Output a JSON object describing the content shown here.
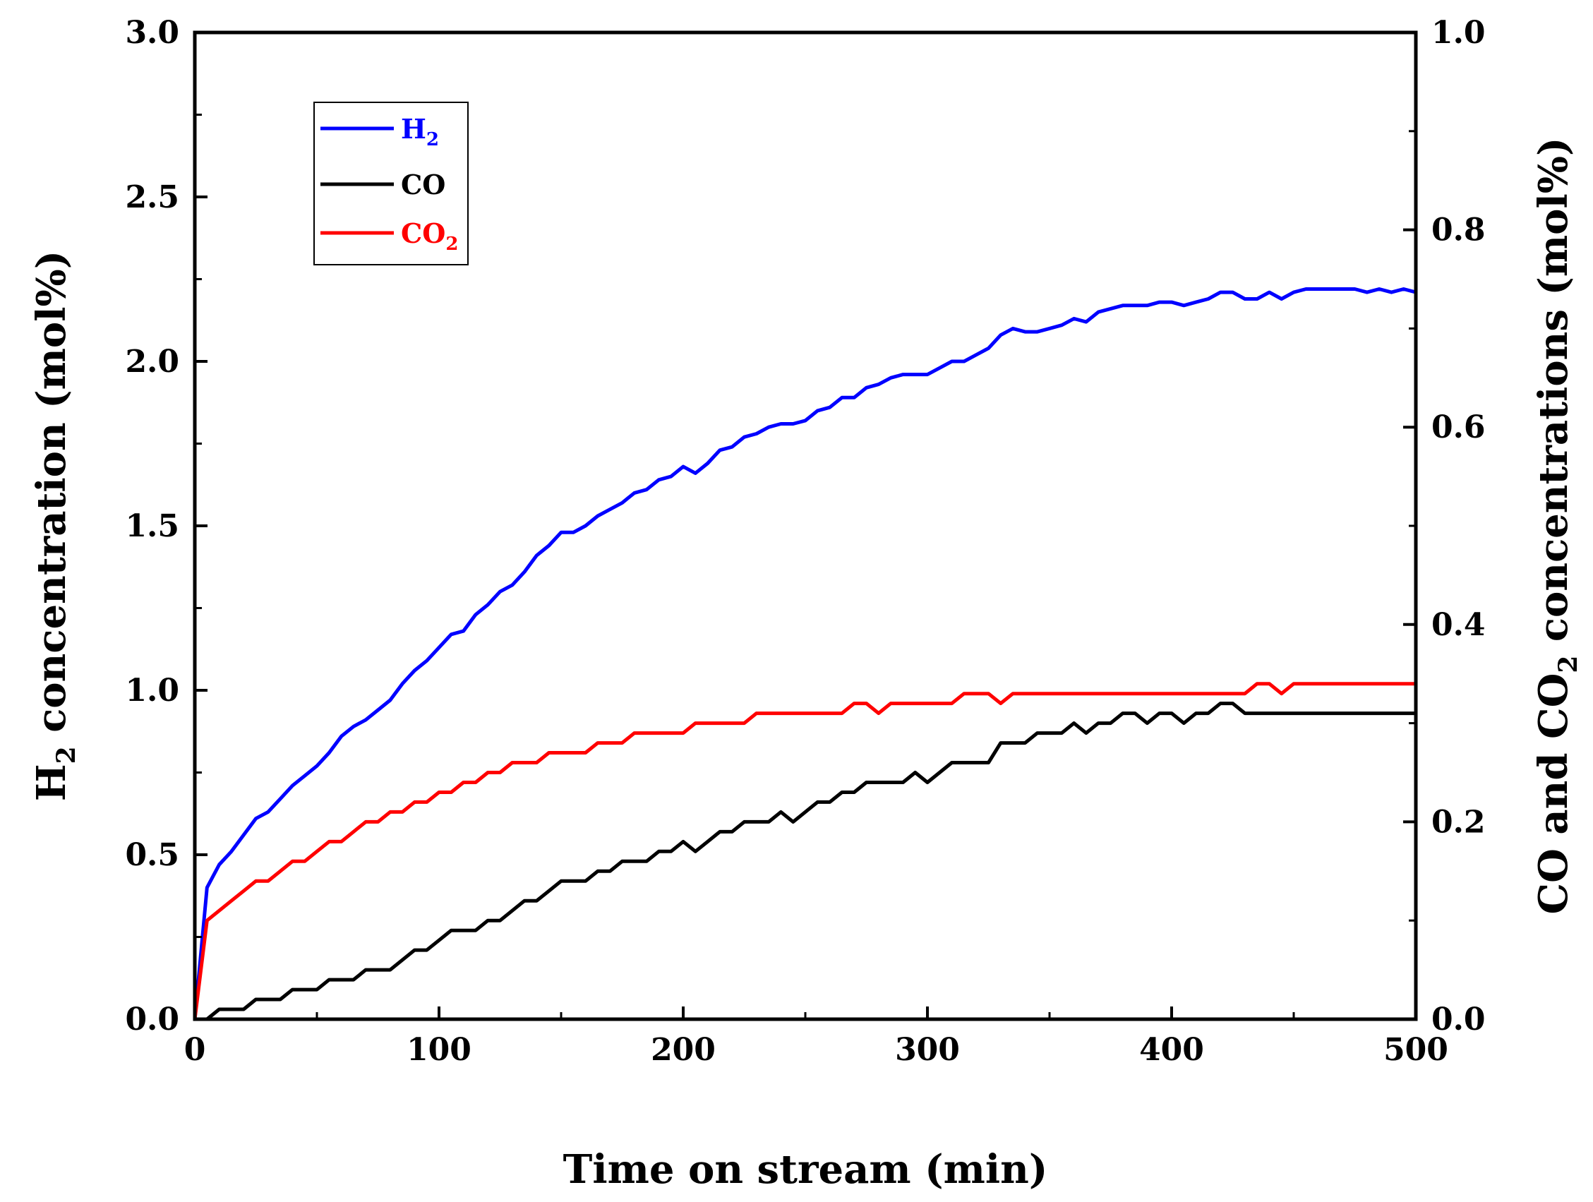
{
  "chart_data": {
    "type": "line",
    "xlabel": "Time on stream (min)",
    "ylabel": {
      "main": "H",
      "sub": "2",
      "rest": " concentration (mol%)"
    },
    "y2label": {
      "pre": "CO and CO",
      "sub": "2",
      "post": " concentrations (mol%)"
    },
    "xlim": [
      0,
      500
    ],
    "ylim": [
      0,
      3.0
    ],
    "y2lim": [
      0,
      1.0
    ],
    "x_ticks": [
      "0",
      "100",
      "200",
      "300",
      "400",
      "500"
    ],
    "y_ticks": [
      "0.0",
      "0.5",
      "1.0",
      "1.5",
      "2.0",
      "2.5",
      "3.0"
    ],
    "y2_ticks": [
      "0.0",
      "0.2",
      "0.4",
      "0.6",
      "0.8",
      "1.0"
    ],
    "legend_position": "top-left",
    "series": [
      {
        "name": "H2",
        "label_main": "H",
        "label_sub": "2",
        "axis": "left",
        "color": "#0000ff",
        "x": [
          0,
          5,
          10,
          15,
          20,
          25,
          30,
          35,
          40,
          45,
          50,
          55,
          60,
          65,
          70,
          75,
          80,
          85,
          90,
          95,
          100,
          105,
          110,
          115,
          120,
          125,
          130,
          135,
          140,
          145,
          150,
          155,
          160,
          165,
          170,
          175,
          180,
          185,
          190,
          195,
          200,
          205,
          210,
          215,
          220,
          225,
          230,
          235,
          240,
          245,
          250,
          255,
          260,
          265,
          270,
          275,
          280,
          285,
          290,
          295,
          300,
          305,
          310,
          315,
          320,
          325,
          330,
          335,
          340,
          345,
          350,
          355,
          360,
          365,
          370,
          375,
          380,
          385,
          390,
          395,
          400,
          405,
          410,
          415,
          420,
          425,
          430,
          435,
          440,
          445,
          450,
          455,
          460,
          465,
          470,
          475,
          480,
          485,
          490,
          495,
          500
        ],
        "values": [
          0.0,
          0.4,
          0.47,
          0.51,
          0.56,
          0.61,
          0.63,
          0.67,
          0.71,
          0.74,
          0.77,
          0.81,
          0.86,
          0.89,
          0.91,
          0.94,
          0.97,
          1.02,
          1.06,
          1.09,
          1.13,
          1.17,
          1.18,
          1.23,
          1.26,
          1.3,
          1.32,
          1.36,
          1.41,
          1.44,
          1.48,
          1.48,
          1.5,
          1.53,
          1.55,
          1.57,
          1.6,
          1.61,
          1.64,
          1.65,
          1.68,
          1.66,
          1.69,
          1.73,
          1.74,
          1.77,
          1.78,
          1.8,
          1.81,
          1.81,
          1.82,
          1.85,
          1.86,
          1.89,
          1.89,
          1.92,
          1.93,
          1.95,
          1.96,
          1.96,
          1.96,
          1.98,
          2.0,
          2.0,
          2.02,
          2.04,
          2.08,
          2.1,
          2.09,
          2.09,
          2.1,
          2.11,
          2.13,
          2.12,
          2.15,
          2.16,
          2.17,
          2.17,
          2.17,
          2.18,
          2.18,
          2.17,
          2.18,
          2.19,
          2.21,
          2.21,
          2.19,
          2.19,
          2.21,
          2.19,
          2.21,
          2.22,
          2.22,
          2.22,
          2.22,
          2.22,
          2.21,
          2.22,
          2.21,
          2.22,
          2.21
        ]
      },
      {
        "name": "CO",
        "label_main": "CO",
        "label_sub": "",
        "axis": "right",
        "color": "#000000",
        "x": [
          0,
          5,
          10,
          15,
          20,
          25,
          30,
          35,
          40,
          45,
          50,
          55,
          60,
          65,
          70,
          75,
          80,
          85,
          90,
          95,
          100,
          105,
          110,
          115,
          120,
          125,
          130,
          135,
          140,
          145,
          150,
          155,
          160,
          165,
          170,
          175,
          180,
          185,
          190,
          195,
          200,
          205,
          210,
          215,
          220,
          225,
          230,
          235,
          240,
          245,
          250,
          255,
          260,
          265,
          270,
          275,
          280,
          285,
          290,
          295,
          300,
          305,
          310,
          315,
          320,
          325,
          330,
          335,
          340,
          345,
          350,
          355,
          360,
          365,
          370,
          375,
          380,
          385,
          390,
          395,
          400,
          405,
          410,
          415,
          420,
          425,
          430,
          435,
          440,
          445,
          450,
          455,
          460,
          465,
          470,
          475,
          480,
          485,
          490,
          495,
          500
        ],
        "values": [
          0.0,
          0.0,
          0.01,
          0.01,
          0.01,
          0.02,
          0.02,
          0.02,
          0.03,
          0.03,
          0.03,
          0.04,
          0.04,
          0.04,
          0.05,
          0.05,
          0.05,
          0.06,
          0.07,
          0.07,
          0.08,
          0.09,
          0.09,
          0.09,
          0.1,
          0.1,
          0.11,
          0.12,
          0.12,
          0.13,
          0.14,
          0.14,
          0.14,
          0.15,
          0.15,
          0.16,
          0.16,
          0.16,
          0.17,
          0.17,
          0.18,
          0.17,
          0.18,
          0.19,
          0.19,
          0.2,
          0.2,
          0.2,
          0.21,
          0.2,
          0.21,
          0.22,
          0.22,
          0.23,
          0.23,
          0.24,
          0.24,
          0.24,
          0.24,
          0.25,
          0.24,
          0.25,
          0.26,
          0.26,
          0.26,
          0.26,
          0.28,
          0.28,
          0.28,
          0.29,
          0.29,
          0.29,
          0.3,
          0.29,
          0.3,
          0.3,
          0.31,
          0.31,
          0.3,
          0.31,
          0.31,
          0.3,
          0.31,
          0.31,
          0.32,
          0.32,
          0.31,
          0.31,
          0.31,
          0.31,
          0.31,
          0.31,
          0.31,
          0.31,
          0.31,
          0.31,
          0.31,
          0.31,
          0.31,
          0.31,
          0.31
        ]
      },
      {
        "name": "CO2",
        "label_main": "CO",
        "label_sub": "2",
        "axis": "right",
        "color": "#ff0000",
        "x": [
          0,
          5,
          10,
          15,
          20,
          25,
          30,
          35,
          40,
          45,
          50,
          55,
          60,
          65,
          70,
          75,
          80,
          85,
          90,
          95,
          100,
          105,
          110,
          115,
          120,
          125,
          130,
          135,
          140,
          145,
          150,
          155,
          160,
          165,
          170,
          175,
          180,
          185,
          190,
          195,
          200,
          205,
          210,
          215,
          220,
          225,
          230,
          235,
          240,
          245,
          250,
          255,
          260,
          265,
          270,
          275,
          280,
          285,
          290,
          295,
          300,
          305,
          310,
          315,
          320,
          325,
          330,
          335,
          340,
          345,
          350,
          355,
          360,
          365,
          370,
          375,
          380,
          385,
          390,
          395,
          400,
          405,
          410,
          415,
          420,
          425,
          430,
          435,
          440,
          445,
          450,
          455,
          460,
          465,
          470,
          475,
          480,
          485,
          490,
          495,
          500
        ],
        "values": [
          0.0,
          0.1,
          0.11,
          0.12,
          0.13,
          0.14,
          0.14,
          0.15,
          0.16,
          0.16,
          0.17,
          0.18,
          0.18,
          0.19,
          0.2,
          0.2,
          0.21,
          0.21,
          0.22,
          0.22,
          0.23,
          0.23,
          0.24,
          0.24,
          0.25,
          0.25,
          0.26,
          0.26,
          0.26,
          0.27,
          0.27,
          0.27,
          0.27,
          0.28,
          0.28,
          0.28,
          0.29,
          0.29,
          0.29,
          0.29,
          0.29,
          0.3,
          0.3,
          0.3,
          0.3,
          0.3,
          0.31,
          0.31,
          0.31,
          0.31,
          0.31,
          0.31,
          0.31,
          0.31,
          0.32,
          0.32,
          0.31,
          0.32,
          0.32,
          0.32,
          0.32,
          0.32,
          0.32,
          0.33,
          0.33,
          0.33,
          0.32,
          0.33,
          0.33,
          0.33,
          0.33,
          0.33,
          0.33,
          0.33,
          0.33,
          0.33,
          0.33,
          0.33,
          0.33,
          0.33,
          0.33,
          0.33,
          0.33,
          0.33,
          0.33,
          0.33,
          0.33,
          0.34,
          0.34,
          0.33,
          0.34,
          0.34,
          0.34,
          0.34,
          0.34,
          0.34,
          0.34,
          0.34,
          0.34,
          0.34,
          0.34
        ]
      }
    ]
  }
}
